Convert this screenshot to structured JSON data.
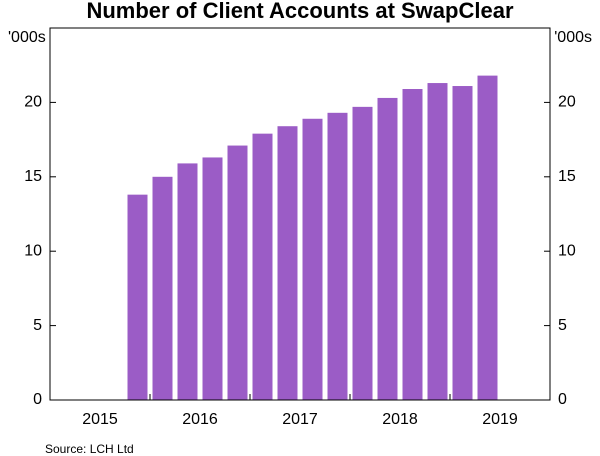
{
  "chart_data": {
    "type": "bar",
    "title": "Number of Client Accounts at SwapClear",
    "y_unit": "'000s",
    "source": "Source:   LCH Ltd",
    "categories": [
      null,
      "2015",
      null,
      null,
      null,
      "2016",
      null,
      null,
      null,
      "2017",
      null,
      null,
      null,
      "2018",
      null,
      null,
      null,
      "2019",
      null,
      null
    ],
    "values": [
      null,
      null,
      null,
      13.8,
      15.0,
      15.9,
      16.3,
      17.1,
      17.9,
      18.4,
      18.9,
      19.3,
      19.7,
      20.3,
      20.9,
      21.3,
      21.1,
      21.8,
      null,
      null
    ],
    "color": "#9b5cc6",
    "ylim": [
      0,
      25
    ],
    "yticks": [
      0,
      5,
      10,
      15,
      20
    ],
    "grid": false
  }
}
